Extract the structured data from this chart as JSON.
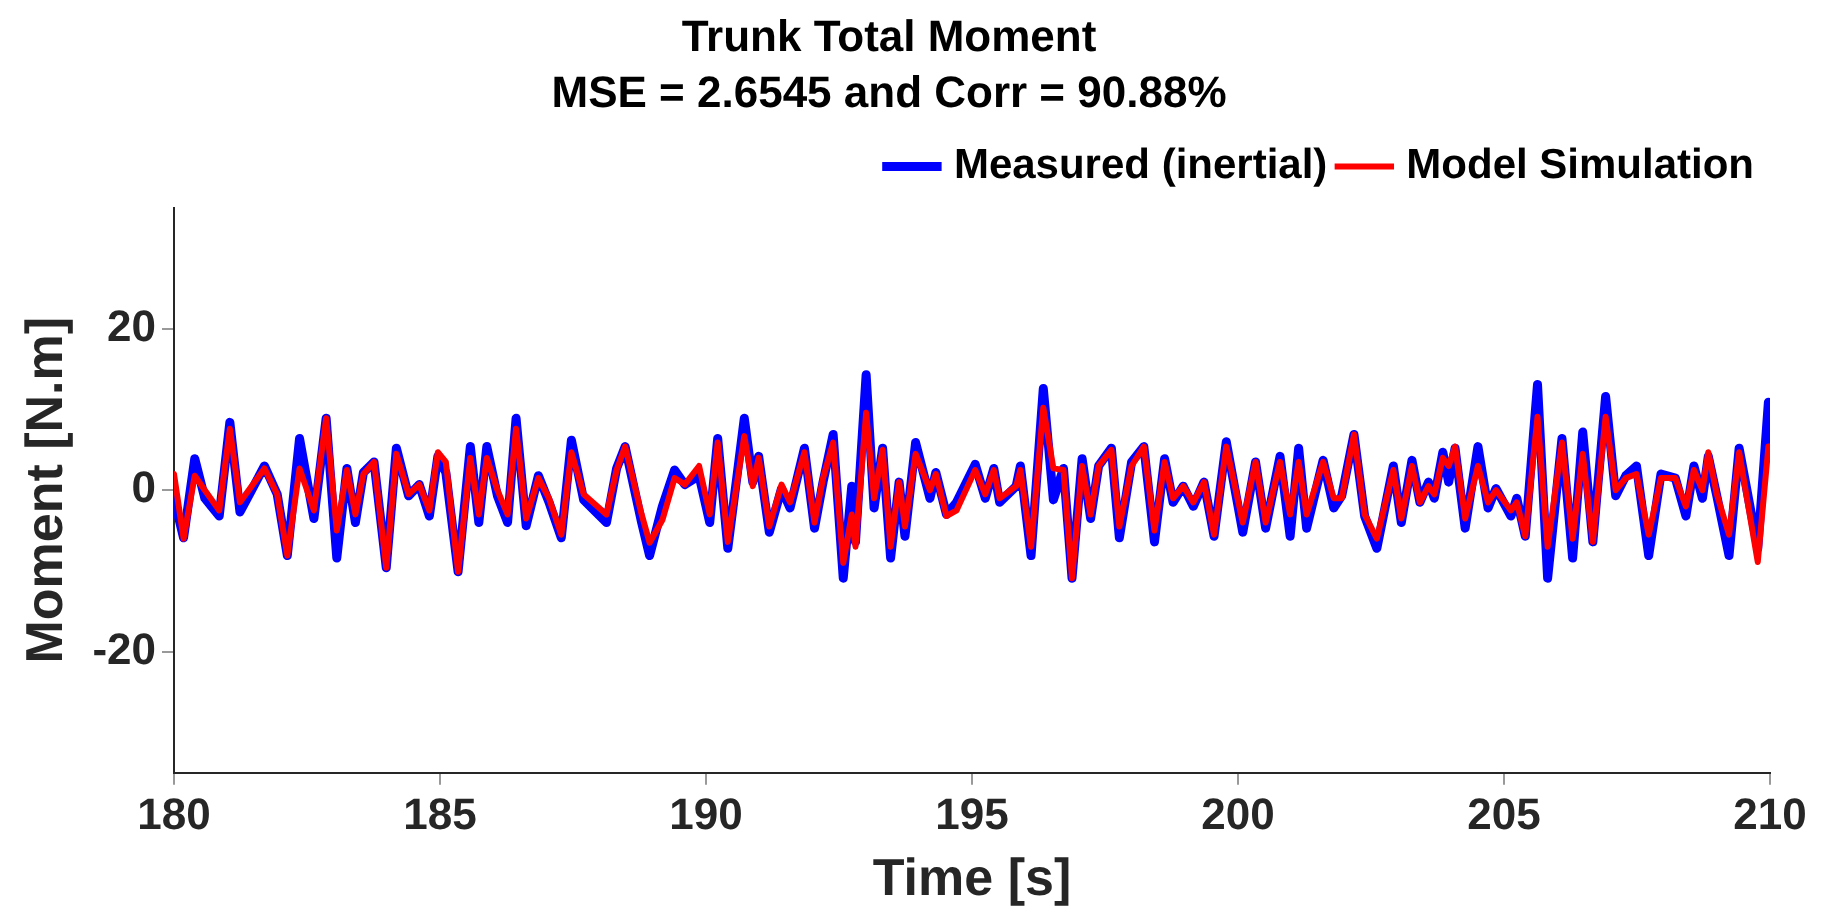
{
  "chart_data": {
    "type": "line",
    "title": "Trunk Total Moment",
    "subtitle": "MSE = 2.6545 and Corr = 90.88%",
    "xlabel": "Time [s]",
    "ylabel": "Moment [N.m]",
    "x": [
      180.0,
      180.18,
      180.39,
      180.58,
      180.85,
      181.05,
      181.24,
      181.7,
      181.94,
      182.13,
      182.36,
      182.63,
      182.86,
      183.06,
      183.25,
      183.41,
      183.56,
      183.76,
      183.99,
      184.18,
      184.41,
      184.61,
      184.8,
      184.96,
      185.11,
      185.34,
      185.57,
      185.73,
      185.88,
      186.08,
      186.27,
      186.43,
      186.62,
      186.85,
      187.05,
      187.28,
      187.47,
      187.7,
      188.13,
      188.32,
      188.48,
      188.79,
      188.94,
      189.18,
      189.41,
      189.6,
      189.87,
      190.07,
      190.22,
      190.41,
      190.72,
      190.88,
      190.99,
      191.19,
      191.42,
      191.58,
      191.85,
      192.04,
      192.2,
      192.39,
      192.58,
      192.74,
      192.81,
      193.01,
      193.16,
      193.32,
      193.47,
      193.63,
      193.74,
      193.94,
      194.21,
      194.32,
      194.52,
      194.71,
      195.06,
      195.25,
      195.41,
      195.52,
      195.83,
      195.91,
      196.11,
      196.34,
      196.53,
      196.72,
      196.88,
      197.07,
      197.23,
      197.38,
      197.62,
      197.77,
      198.0,
      198.23,
      198.43,
      198.62,
      198.78,
      198.97,
      199.16,
      199.36,
      199.55,
      199.78,
      200.09,
      200.33,
      200.52,
      200.79,
      200.98,
      201.14,
      201.29,
      201.6,
      201.8,
      201.95,
      202.18,
      202.38,
      202.61,
      202.92,
      203.07,
      203.27,
      203.42,
      203.58,
      203.69,
      203.85,
      203.96,
      204.08,
      204.27,
      204.51,
      204.7,
      204.85,
      205.13,
      205.24,
      205.4,
      205.63,
      205.82,
      206.09,
      206.29,
      206.48,
      206.67,
      206.91,
      207.1,
      207.29,
      207.49,
      207.72,
      207.95,
      208.22,
      208.42,
      208.57,
      208.73,
      208.84,
      209.0,
      209.23,
      209.42,
      209.77,
      209.97
    ],
    "series": [
      {
        "name": "Measured (inertial)",
        "color": "#0000ff",
        "values": [
          -1,
          -5.9,
          3.9,
          -1,
          -3.2,
          8.4,
          -2.7,
          3,
          -0.5,
          -8.1,
          6.4,
          -3.5,
          8.9,
          -8.4,
          2.7,
          -4,
          2.2,
          3.5,
          -9.6,
          5.2,
          -0.7,
          0.7,
          -3.2,
          4.2,
          2.2,
          -10.1,
          5.4,
          -4,
          5.4,
          -0.7,
          -4,
          8.9,
          -4.4,
          1.8,
          -1.5,
          -5.9,
          6.2,
          -1.2,
          -4,
          2.7,
          5.4,
          -4,
          -8.1,
          -2,
          2.5,
          0.7,
          1.8,
          -4,
          6.4,
          -7.2,
          8.9,
          1,
          4.2,
          -5.2,
          0.2,
          -2.2,
          5.2,
          -4.7,
          1,
          6.9,
          -10.9,
          0.5,
          -6.4,
          14.3,
          -2.2,
          5.2,
          -8.4,
          1,
          -5.7,
          5.9,
          -1,
          2.2,
          -3,
          -1.5,
          3.2,
          -1,
          2.7,
          -1.5,
          0.5,
          3,
          -8.1,
          12.6,
          -1.2,
          2.7,
          -10.9,
          3.9,
          -3.5,
          3,
          5.2,
          -5.9,
          3.5,
          5.4,
          -6.4,
          3.9,
          -1.5,
          0.5,
          -2,
          1,
          -5.7,
          6,
          -5.2,
          3.5,
          -4.7,
          4.2,
          -5.7,
          5.2,
          -4.7,
          3.7,
          -2.2,
          -0.7,
          6.9,
          -3.2,
          -7.2,
          3,
          -4,
          3.7,
          -1.5,
          1,
          -1,
          4.7,
          1,
          5.2,
          -4.7,
          5.4,
          -2.2,
          0.2,
          -3.2,
          -1,
          -5.7,
          13.1,
          -10.9,
          6.4,
          -8.4,
          7.2,
          -6.4,
          11.6,
          -0.7,
          1.8,
          3,
          -8.1,
          2,
          1.5,
          -3.2,
          3,
          -1,
          4.2,
          -0.7,
          -8.1,
          5.2,
          -7.2,
          10.9
        ]
      },
      {
        "name": "Model Simulation",
        "color": "#ff0000",
        "values": [
          2,
          -6,
          1.8,
          0,
          -2.5,
          7.6,
          -1.5,
          2.7,
          -0.5,
          -8.1,
          2.7,
          -2.5,
          8.9,
          -5,
          2.5,
          -3,
          2,
          3.5,
          -9.6,
          4.5,
          -0.5,
          0.7,
          -2.5,
          4.7,
          3.5,
          -10.1,
          4,
          -3,
          4,
          0,
          -3,
          7.6,
          -3.5,
          1.5,
          -1,
          -5.5,
          4.7,
          -0.5,
          -3,
          2.5,
          5.4,
          -3,
          -6.5,
          -3.7,
          1.5,
          0.7,
          3,
          -3,
          5.9,
          -6.4,
          6.7,
          0.5,
          4,
          -4.5,
          0.7,
          -1.5,
          4.7,
          -4,
          1.5,
          5.9,
          -9,
          -3,
          -7,
          9.6,
          -1,
          5,
          -7,
          1,
          -4.5,
          4.5,
          0,
          2,
          -3.2,
          -2.5,
          2.5,
          -0.5,
          2.5,
          -1,
          0.5,
          2.5,
          -7,
          10.2,
          2.7,
          2.5,
          -10.9,
          3,
          -3,
          3,
          5,
          -4.5,
          3,
          5.4,
          -5,
          3.5,
          -1,
          0.5,
          -1.5,
          1,
          -5.5,
          5.4,
          -4,
          3.5,
          -4,
          3.5,
          -3,
          3.5,
          -3,
          3.5,
          -1,
          -1,
          6.9,
          -3,
          -6,
          2.5,
          -3.5,
          3,
          -1.5,
          0.5,
          -0.5,
          4,
          3,
          5.4,
          -3.5,
          3,
          -1.5,
          0,
          -2.5,
          -1.5,
          -5.7,
          9.1,
          -7,
          5.9,
          -6,
          4.5,
          -6.4,
          9.1,
          0,
          1.5,
          2,
          -5.5,
          1.5,
          1.5,
          -2,
          2.5,
          0,
          4.7,
          -0.5,
          -5.5,
          4.7,
          -8.9,
          5.4
        ]
      }
    ],
    "xlim": [
      180,
      210
    ],
    "xticks": [
      180,
      185,
      190,
      195,
      200,
      205,
      210
    ],
    "ylim": [
      -35,
      35
    ],
    "yticks": [
      -20,
      0,
      20
    ],
    "grid": false,
    "legend": "top right",
    "marker": "none",
    "line_style": "solid"
  }
}
